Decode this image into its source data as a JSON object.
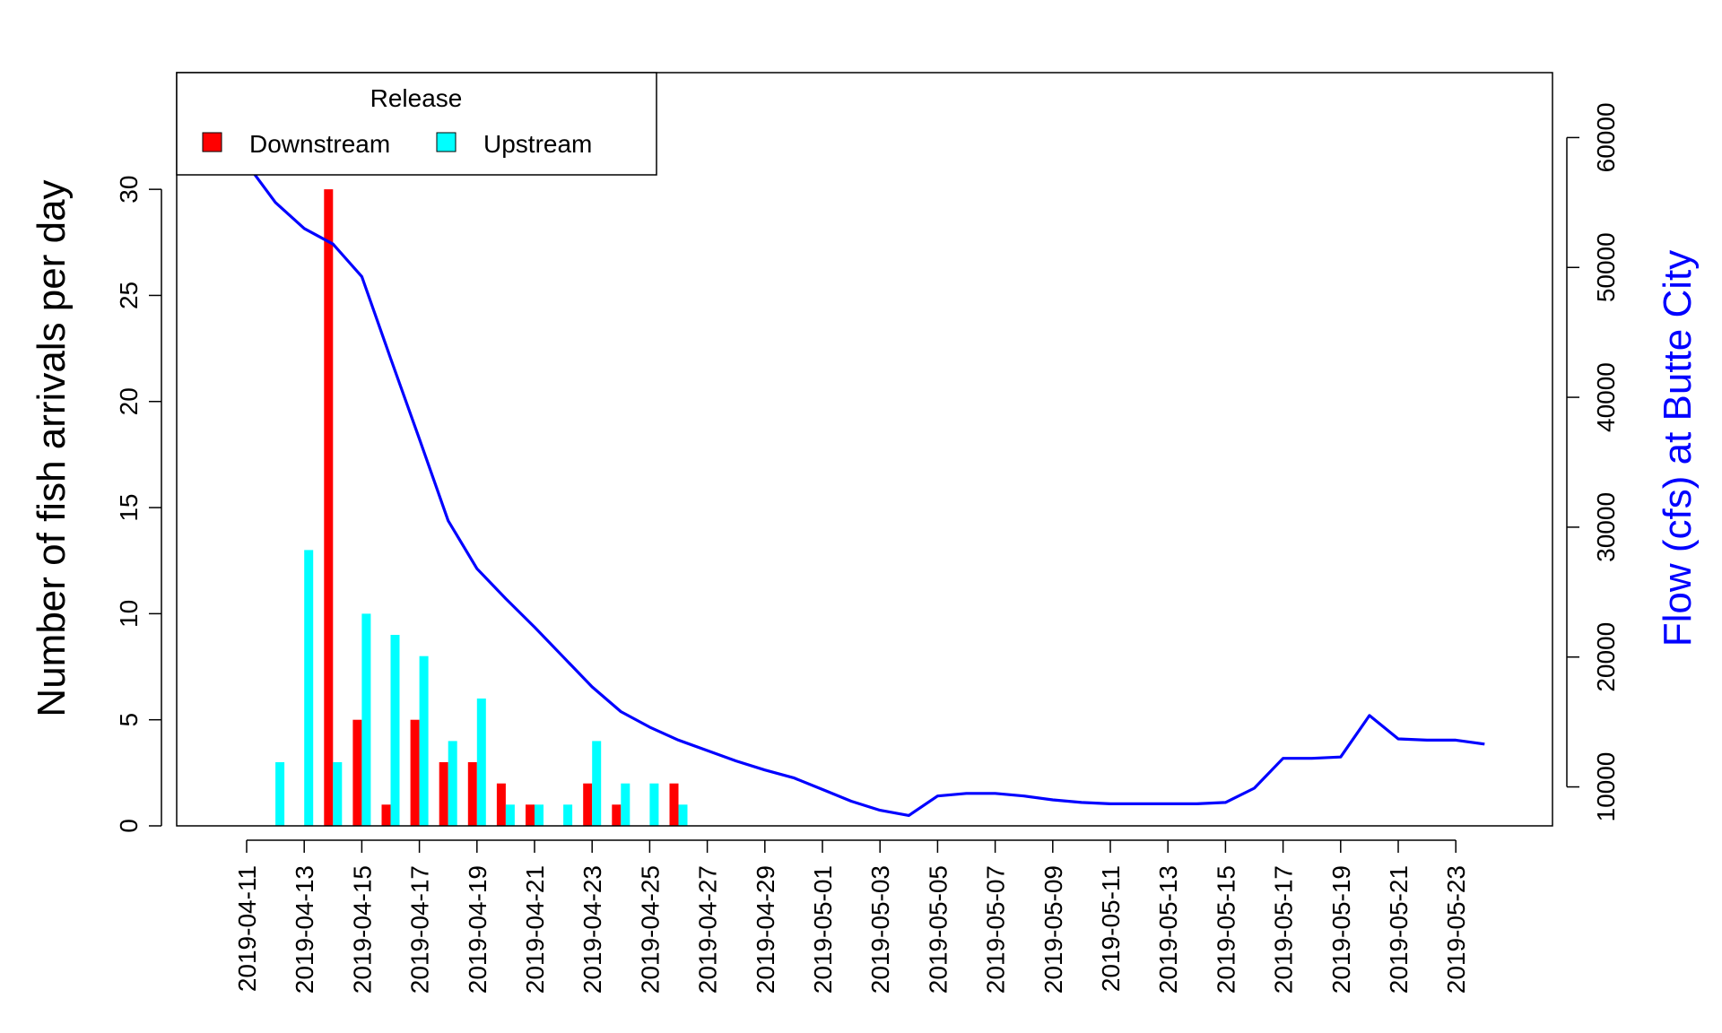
{
  "chart_data": {
    "type": "bar",
    "title": "",
    "xlabel": "",
    "ylabel": "Number of fish arrivals per day",
    "y2label": "Flow (cfs) at Butte City",
    "ylim": [
      0,
      35.5
    ],
    "y2lim": [
      7000,
      65000
    ],
    "yticks": [
      0,
      5,
      10,
      15,
      20,
      25,
      30
    ],
    "y2ticks": [
      10000,
      20000,
      30000,
      40000,
      50000,
      60000
    ],
    "xticks": [
      "2019-04-11",
      "2019-04-13",
      "2019-04-15",
      "2019-04-17",
      "2019-04-19",
      "2019-04-21",
      "2019-04-23",
      "2019-04-25",
      "2019-04-27",
      "2019-04-29",
      "2019-05-01",
      "2019-05-03",
      "2019-05-05",
      "2019-05-07",
      "2019-05-09",
      "2019-05-11",
      "2019-05-13",
      "2019-05-15",
      "2019-05-17",
      "2019-05-19",
      "2019-05-21",
      "2019-05-23"
    ],
    "categories": [
      "2019-04-11",
      "2019-04-12",
      "2019-04-13",
      "2019-04-14",
      "2019-04-15",
      "2019-04-16",
      "2019-04-17",
      "2019-04-18",
      "2019-04-19",
      "2019-04-20",
      "2019-04-21",
      "2019-04-22",
      "2019-04-23",
      "2019-04-24",
      "2019-04-25",
      "2019-04-26",
      "2019-04-27",
      "2019-04-28",
      "2019-04-29",
      "2019-04-30",
      "2019-05-01",
      "2019-05-02",
      "2019-05-03",
      "2019-05-04",
      "2019-05-05",
      "2019-05-06",
      "2019-05-07",
      "2019-05-08",
      "2019-05-09",
      "2019-05-10",
      "2019-05-11",
      "2019-05-12",
      "2019-05-13",
      "2019-05-14",
      "2019-05-15",
      "2019-05-16",
      "2019-05-17",
      "2019-05-18",
      "2019-05-19",
      "2019-05-20",
      "2019-05-21",
      "2019-05-22",
      "2019-05-23",
      "2019-05-24"
    ],
    "series": [
      {
        "name": "Downstream",
        "color": "#ff0000",
        "values": [
          0,
          0,
          0,
          30,
          5,
          1,
          5,
          3,
          3,
          2,
          1,
          0,
          2,
          1,
          0,
          2,
          0,
          0,
          0,
          0,
          0,
          0,
          0,
          0,
          0,
          0,
          0,
          0,
          0,
          0,
          0,
          0,
          0,
          0,
          0,
          0,
          0,
          0,
          0,
          0,
          0,
          0,
          0,
          0
        ]
      },
      {
        "name": "Upstream",
        "color": "#00ffff",
        "values": [
          0,
          3,
          13,
          3,
          10,
          9,
          8,
          4,
          6,
          1,
          1,
          1,
          4,
          2,
          2,
          1,
          0,
          0,
          0,
          0,
          0,
          0,
          0,
          0,
          0,
          0,
          0,
          0,
          0,
          0,
          0,
          0,
          0,
          0,
          0,
          0,
          0,
          0,
          0,
          0,
          0,
          0,
          0,
          0
        ]
      }
    ],
    "flow": {
      "name": "Flow (cfs) at Butte City",
      "color": "#0000ff",
      "values": [
        58000,
        55000,
        53000,
        51800,
        49300,
        43000,
        36800,
        30500,
        26800,
        24500,
        22300,
        20000,
        17700,
        15800,
        14600,
        13600,
        12800,
        12000,
        11300,
        10700,
        9800,
        8900,
        8200,
        7800,
        9300,
        9500,
        9500,
        9300,
        9000,
        8800,
        8700,
        8700,
        8700,
        8700,
        8800,
        9900,
        12200,
        12200,
        12300,
        15500,
        13700,
        13600,
        13600,
        13300
      ]
    },
    "legend": {
      "title": "Release",
      "position": "top-left",
      "entries": [
        "Downstream",
        "Upstream"
      ]
    },
    "grid": false
  }
}
